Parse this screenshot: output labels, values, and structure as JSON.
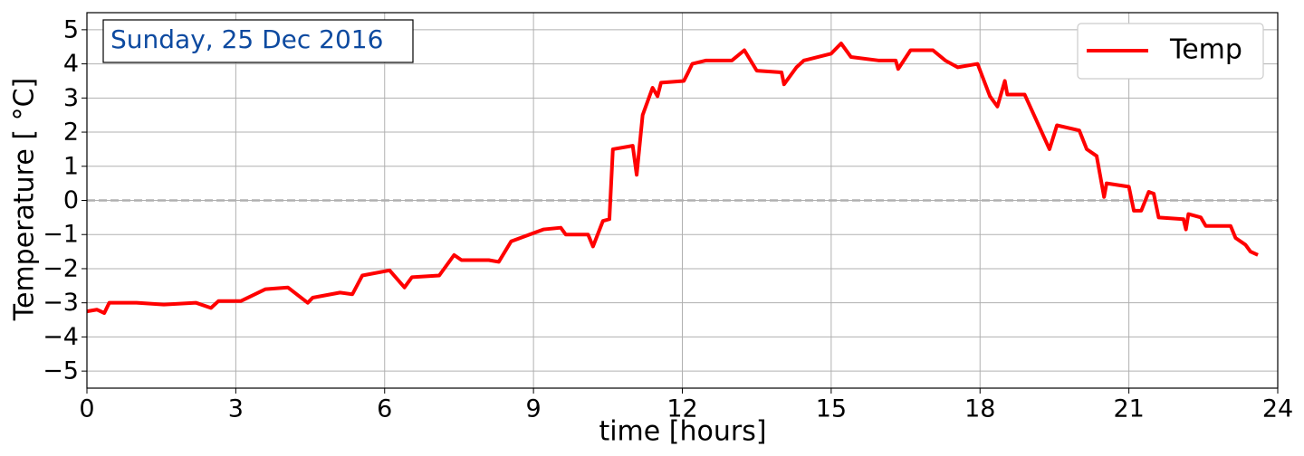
{
  "chart_data": {
    "type": "line",
    "annotation": "Sunday, 25 Dec 2016",
    "xlabel": "time [hours]",
    "ylabel": "Temperature [ °C]",
    "xlim": [
      0,
      24
    ],
    "xticks": [
      0,
      3,
      6,
      9,
      12,
      15,
      18,
      21,
      24
    ],
    "ylim": [
      -5.5,
      5.5
    ],
    "yticks": [
      {
        "value": -5,
        "label": "−5"
      },
      {
        "value": -4,
        "label": "−4"
      },
      {
        "value": -3,
        "label": "−3"
      },
      {
        "value": -2,
        "label": "−2"
      },
      {
        "value": -1,
        "label": "−1"
      },
      0,
      1,
      2,
      3,
      4,
      5
    ],
    "grid": true,
    "reference_line": 0,
    "legend": "upper right",
    "x": [
      0,
      0.2,
      0.35,
      0.45,
      1.0,
      1.55,
      2.2,
      2.5,
      2.65,
      3.1,
      3.6,
      4.05,
      4.45,
      4.55,
      5.1,
      5.35,
      5.55,
      6.1,
      6.4,
      6.55,
      7.1,
      7.4,
      7.55,
      8.1,
      8.3,
      8.55,
      9.2,
      9.55,
      9.65,
      10.1,
      10.2,
      10.4,
      10.53,
      10.6,
      11.0,
      11.08,
      11.2,
      11.4,
      11.5,
      11.57,
      12.03,
      12.1,
      12.2,
      12.48,
      13.0,
      13.25,
      13.5,
      14.0,
      14.05,
      14.3,
      14.45,
      15.0,
      15.2,
      15.4,
      15.95,
      16.3,
      16.35,
      16.6,
      17.05,
      17.3,
      17.55,
      17.95,
      18.2,
      18.35,
      18.5,
      18.55,
      18.9,
      19.4,
      19.55,
      20.0,
      20.15,
      20.35,
      20.5,
      20.55,
      21.0,
      21.1,
      21.25,
      21.4,
      21.5,
      21.6,
      22.1,
      22.15,
      22.2,
      22.45,
      22.55,
      23.05,
      23.15,
      23.35,
      23.45,
      23.6
    ],
    "series": [
      {
        "name": "Temp",
        "color": "#ff0000",
        "values": [
          -3.25,
          -3.2,
          -3.3,
          -3.0,
          -3.0,
          -3.05,
          -3.0,
          -3.15,
          -2.95,
          -2.95,
          -2.6,
          -2.55,
          -3.0,
          -2.85,
          -2.7,
          -2.75,
          -2.2,
          -2.05,
          -2.55,
          -2.25,
          -2.2,
          -1.6,
          -1.75,
          -1.75,
          -1.8,
          -1.2,
          -0.85,
          -0.8,
          -1.0,
          -1.0,
          -1.35,
          -0.6,
          -0.55,
          1.5,
          1.6,
          0.75,
          2.5,
          3.3,
          3.05,
          3.45,
          3.5,
          3.7,
          4.0,
          4.1,
          4.1,
          4.4,
          3.8,
          3.75,
          3.4,
          3.9,
          4.1,
          4.3,
          4.6,
          4.2,
          4.1,
          4.1,
          3.85,
          4.4,
          4.4,
          4.1,
          3.9,
          4.0,
          3.05,
          2.75,
          3.5,
          3.1,
          3.1,
          1.5,
          2.2,
          2.05,
          1.5,
          1.3,
          0.1,
          0.5,
          0.4,
          -0.3,
          -0.3,
          0.25,
          0.2,
          -0.5,
          -0.55,
          -0.85,
          -0.4,
          -0.5,
          -0.75,
          -0.75,
          -1.1,
          -1.3,
          -1.5,
          -1.6
        ]
      }
    ]
  }
}
